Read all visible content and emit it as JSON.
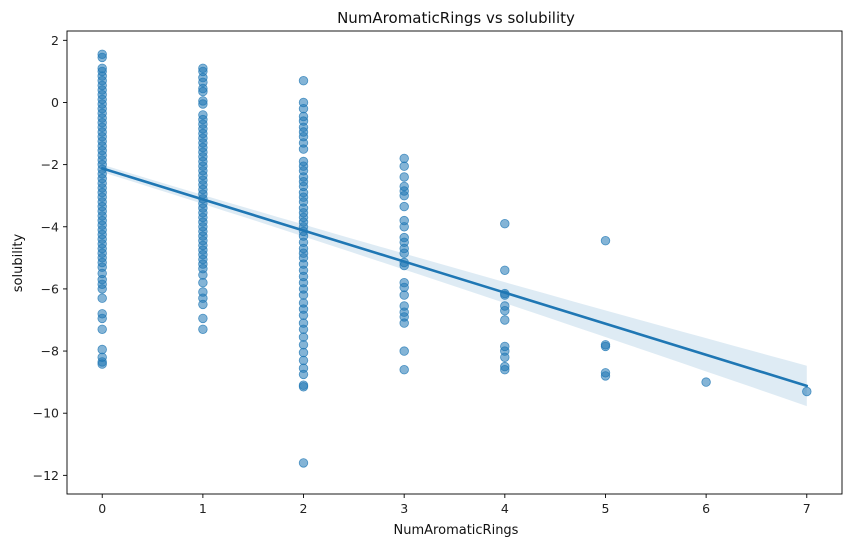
{
  "chart_data": {
    "type": "scatter",
    "title": "NumAromaticRings vs solubility",
    "xlabel": "NumAromaticRings",
    "ylabel": "solubility",
    "xlim": [
      -0.35,
      7.35
    ],
    "ylim": [
      -12.6,
      2.3
    ],
    "xticks": [
      0,
      1,
      2,
      3,
      4,
      5,
      6,
      7
    ],
    "yticks": [
      2,
      0,
      -2,
      -4,
      -6,
      -8,
      -10,
      -12
    ],
    "ytick_labels": [
      "2",
      "0",
      "−2",
      "−4",
      "−6",
      "−8",
      "−10",
      "−12"
    ],
    "grid": false,
    "point_color": "#1f77b4",
    "point_alpha": 0.55,
    "regression": {
      "slope": -1.0,
      "intercept": -2.12,
      "x_range": [
        0,
        7
      ],
      "ci_start": 0.12,
      "ci_end": 0.65
    },
    "series": [
      {
        "points": [
          [
            0,
            1.55
          ],
          [
            0,
            1.45
          ],
          [
            0,
            1.1
          ],
          [
            0,
            1.0
          ],
          [
            0,
            0.85
          ],
          [
            0,
            0.7
          ],
          [
            0,
            0.55
          ],
          [
            0,
            0.4
          ],
          [
            0,
            0.25
          ],
          [
            0,
            0.1
          ],
          [
            0,
            -0.05
          ],
          [
            0,
            -0.2
          ],
          [
            0,
            -0.35
          ],
          [
            0,
            -0.5
          ],
          [
            0,
            -0.65
          ],
          [
            0,
            -0.8
          ],
          [
            0,
            -0.95
          ],
          [
            0,
            -1.1
          ],
          [
            0,
            -1.25
          ],
          [
            0,
            -1.4
          ],
          [
            0,
            -1.55
          ],
          [
            0,
            -1.7
          ],
          [
            0,
            -1.85
          ],
          [
            0,
            -2.0
          ],
          [
            0,
            -2.15
          ],
          [
            0,
            -2.3
          ],
          [
            0,
            -2.45
          ],
          [
            0,
            -2.6
          ],
          [
            0,
            -2.75
          ],
          [
            0,
            -2.9
          ],
          [
            0,
            -3.05
          ],
          [
            0,
            -3.2
          ],
          [
            0,
            -3.35
          ],
          [
            0,
            -3.5
          ],
          [
            0,
            -3.65
          ],
          [
            0,
            -3.8
          ],
          [
            0,
            -3.95
          ],
          [
            0,
            -4.1
          ],
          [
            0,
            -4.25
          ],
          [
            0,
            -4.4
          ],
          [
            0,
            -4.55
          ],
          [
            0,
            -4.7
          ],
          [
            0,
            -4.85
          ],
          [
            0,
            -5.0
          ],
          [
            0,
            -5.15
          ],
          [
            0,
            -5.3
          ],
          [
            0,
            -5.5
          ],
          [
            0,
            -5.7
          ],
          [
            0,
            -5.85
          ],
          [
            0,
            -6.0
          ],
          [
            0,
            -6.3
          ],
          [
            0,
            -6.8
          ],
          [
            0,
            -6.95
          ],
          [
            0,
            -7.3
          ],
          [
            0,
            -7.95
          ],
          [
            0,
            -8.2
          ],
          [
            0,
            -8.35
          ],
          [
            0,
            -8.42
          ],
          [
            1,
            1.1
          ],
          [
            1,
            1.0
          ],
          [
            1,
            0.8
          ],
          [
            1,
            0.65
          ],
          [
            1,
            0.45
          ],
          [
            1,
            0.35
          ],
          [
            1,
            0.05
          ],
          [
            1,
            -0.05
          ],
          [
            1,
            -0.4
          ],
          [
            1,
            -0.55
          ],
          [
            1,
            -0.7
          ],
          [
            1,
            -0.85
          ],
          [
            1,
            -1.0
          ],
          [
            1,
            -1.15
          ],
          [
            1,
            -1.3
          ],
          [
            1,
            -1.45
          ],
          [
            1,
            -1.6
          ],
          [
            1,
            -1.75
          ],
          [
            1,
            -1.9
          ],
          [
            1,
            -2.05
          ],
          [
            1,
            -2.2
          ],
          [
            1,
            -2.35
          ],
          [
            1,
            -2.5
          ],
          [
            1,
            -2.65
          ],
          [
            1,
            -2.8
          ],
          [
            1,
            -2.95
          ],
          [
            1,
            -3.1
          ],
          [
            1,
            -3.25
          ],
          [
            1,
            -3.4
          ],
          [
            1,
            -3.55
          ],
          [
            1,
            -3.7
          ],
          [
            1,
            -3.85
          ],
          [
            1,
            -4.0
          ],
          [
            1,
            -4.15
          ],
          [
            1,
            -4.3
          ],
          [
            1,
            -4.45
          ],
          [
            1,
            -4.6
          ],
          [
            1,
            -4.75
          ],
          [
            1,
            -4.9
          ],
          [
            1,
            -5.05
          ],
          [
            1,
            -5.2
          ],
          [
            1,
            -5.35
          ],
          [
            1,
            -5.55
          ],
          [
            1,
            -5.8
          ],
          [
            1,
            -6.1
          ],
          [
            1,
            -6.3
          ],
          [
            1,
            -6.5
          ],
          [
            1,
            -6.95
          ],
          [
            1,
            -7.3
          ],
          [
            2,
            0.7
          ],
          [
            2,
            0.0
          ],
          [
            2,
            -0.2
          ],
          [
            2,
            -0.45
          ],
          [
            2,
            -0.6
          ],
          [
            2,
            -0.8
          ],
          [
            2,
            -0.95
          ],
          [
            2,
            -1.1
          ],
          [
            2,
            -1.3
          ],
          [
            2,
            -1.5
          ],
          [
            2,
            -1.9
          ],
          [
            2,
            -2.05
          ],
          [
            2,
            -2.2
          ],
          [
            2,
            -2.4
          ],
          [
            2,
            -2.55
          ],
          [
            2,
            -2.7
          ],
          [
            2,
            -2.9
          ],
          [
            2,
            -3.05
          ],
          [
            2,
            -3.2
          ],
          [
            2,
            -3.4
          ],
          [
            2,
            -3.55
          ],
          [
            2,
            -3.7
          ],
          [
            2,
            -3.85
          ],
          [
            2,
            -4.0
          ],
          [
            2,
            -4.15
          ],
          [
            2,
            -4.3
          ],
          [
            2,
            -4.5
          ],
          [
            2,
            -4.7
          ],
          [
            2,
            -4.85
          ],
          [
            2,
            -5.0
          ],
          [
            2,
            -5.2
          ],
          [
            2,
            -5.4
          ],
          [
            2,
            -5.6
          ],
          [
            2,
            -5.8
          ],
          [
            2,
            -6.0
          ],
          [
            2,
            -6.2
          ],
          [
            2,
            -6.45
          ],
          [
            2,
            -6.65
          ],
          [
            2,
            -6.85
          ],
          [
            2,
            -7.1
          ],
          [
            2,
            -7.3
          ],
          [
            2,
            -7.55
          ],
          [
            2,
            -7.8
          ],
          [
            2,
            -8.05
          ],
          [
            2,
            -8.3
          ],
          [
            2,
            -8.55
          ],
          [
            2,
            -8.75
          ],
          [
            2,
            -9.1
          ],
          [
            2,
            -9.15
          ],
          [
            2,
            -11.6
          ],
          [
            3,
            -1.8
          ],
          [
            3,
            -2.05
          ],
          [
            3,
            -2.4
          ],
          [
            3,
            -2.7
          ],
          [
            3,
            -2.85
          ],
          [
            3,
            -3.0
          ],
          [
            3,
            -3.35
          ],
          [
            3,
            -3.8
          ],
          [
            3,
            -4.0
          ],
          [
            3,
            -4.35
          ],
          [
            3,
            -4.5
          ],
          [
            3,
            -4.7
          ],
          [
            3,
            -4.85
          ],
          [
            3,
            -5.15
          ],
          [
            3,
            -5.25
          ],
          [
            3,
            -5.8
          ],
          [
            3,
            -5.95
          ],
          [
            3,
            -6.2
          ],
          [
            3,
            -6.55
          ],
          [
            3,
            -6.75
          ],
          [
            3,
            -6.9
          ],
          [
            3,
            -7.1
          ],
          [
            3,
            -8.0
          ],
          [
            3,
            -8.6
          ],
          [
            4,
            -3.9
          ],
          [
            4,
            -5.4
          ],
          [
            4,
            -6.15
          ],
          [
            4,
            -6.2
          ],
          [
            4,
            -6.55
          ],
          [
            4,
            -6.7
          ],
          [
            4,
            -7.0
          ],
          [
            4,
            -7.85
          ],
          [
            4,
            -8.0
          ],
          [
            4,
            -8.2
          ],
          [
            4,
            -8.5
          ],
          [
            4,
            -8.6
          ],
          [
            5,
            -4.45
          ],
          [
            5,
            -7.8
          ],
          [
            5,
            -7.85
          ],
          [
            5,
            -8.7
          ],
          [
            5,
            -8.8
          ],
          [
            6,
            -9.0
          ],
          [
            7,
            -9.3
          ]
        ]
      }
    ]
  }
}
